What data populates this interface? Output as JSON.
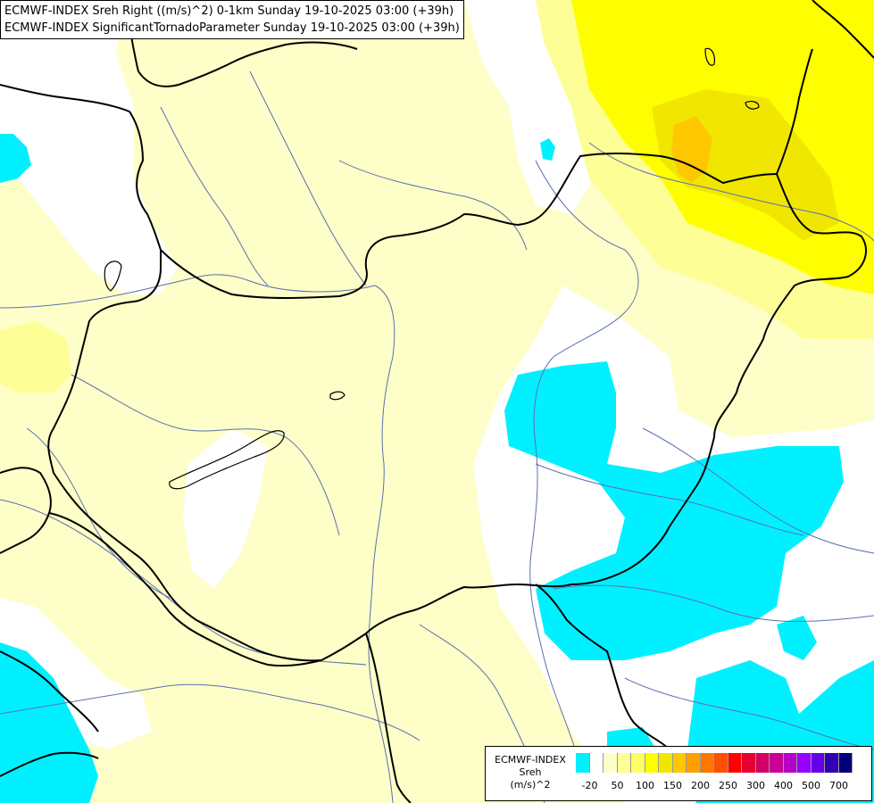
{
  "titles": {
    "line1": "ECMWF-INDEX Sreh Right ((m/s)^2) 0-1km Sunday 19-10-2025 03:00 (+39h)",
    "line2": "ECMWF-INDEX SignificantTornadoParameter Sunday 19-10-2025 03:00 (+39h)"
  },
  "legend": {
    "line1": "ECMWF-INDEX",
    "line2": "Sreh",
    "line3": "(m/s)^2",
    "colors": [
      "#00f0ff",
      "#ffffff",
      "#fefec8",
      "#fefe96",
      "#fefe64",
      "#fefe00",
      "#f0e600",
      "#fec800",
      "#fea000",
      "#fe7800",
      "#fe5000",
      "#fe0000",
      "#e6002d",
      "#d20064",
      "#c80096",
      "#b400c8",
      "#9600fe",
      "#6400e6",
      "#3200b4",
      "#000078"
    ],
    "tick_labels": [
      "-20",
      "50",
      "100",
      "150",
      "200",
      "250",
      "300",
      "400",
      "500",
      "700"
    ]
  },
  "palette": {
    "cyan": "#00f0ff",
    "white": "#ffffff",
    "pale_yellow": "#fefec8",
    "light_yellow": "#fefe96",
    "yellow": "#fefe00",
    "gold": "#f0e600",
    "orange": "#fec800",
    "border_color": "#000000",
    "river_color": "#5a6fb0"
  }
}
